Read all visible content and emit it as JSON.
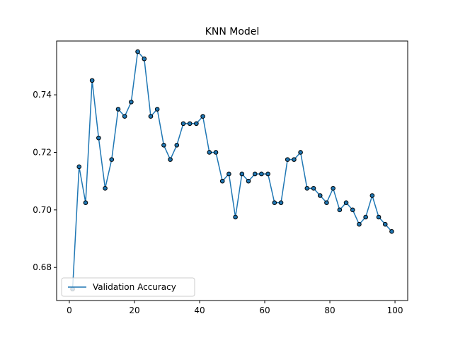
{
  "chart_data": {
    "type": "line",
    "title": "KNN Model",
    "xlabel": "",
    "ylabel": "",
    "xlim": [
      -3.9,
      103.9
    ],
    "ylim": [
      0.6685,
      0.7587
    ],
    "xticks": [
      0,
      20,
      40,
      60,
      80,
      100
    ],
    "yticks": [
      0.68,
      0.7,
      0.72,
      0.74
    ],
    "xtick_labels": [
      "0",
      "20",
      "40",
      "60",
      "80",
      "100"
    ],
    "ytick_labels": [
      "0.68",
      "0.70",
      "0.72",
      "0.74"
    ],
    "grid": false,
    "legend_position": "lower-left",
    "series": [
      {
        "name": "Validation Accuracy",
        "color": "#1f77b4",
        "marker_edge": "#000000",
        "x": [
          1,
          3,
          5,
          7,
          9,
          11,
          13,
          15,
          17,
          19,
          21,
          23,
          25,
          27,
          29,
          31,
          33,
          35,
          37,
          39,
          41,
          43,
          45,
          47,
          49,
          51,
          53,
          55,
          57,
          59,
          61,
          63,
          65,
          67,
          69,
          71,
          73,
          75,
          77,
          79,
          81,
          83,
          85,
          87,
          89,
          91,
          93,
          95,
          97,
          99
        ],
        "values": [
          0.6725,
          0.715,
          0.7025,
          0.745,
          0.725,
          0.7075,
          0.7175,
          0.735,
          0.7325,
          0.7375,
          0.755,
          0.7525,
          0.7325,
          0.735,
          0.7225,
          0.7175,
          0.7225,
          0.73,
          0.73,
          0.73,
          0.7325,
          0.72,
          0.72,
          0.71,
          0.7125,
          0.6975,
          0.7125,
          0.71,
          0.7125,
          0.7125,
          0.7125,
          0.7025,
          0.7025,
          0.7175,
          0.7175,
          0.72,
          0.7075,
          0.7075,
          0.705,
          0.7025,
          0.7075,
          0.7,
          0.7025,
          0.7,
          0.695,
          0.6975,
          0.705,
          0.6975,
          0.695,
          0.6925
        ]
      }
    ]
  }
}
